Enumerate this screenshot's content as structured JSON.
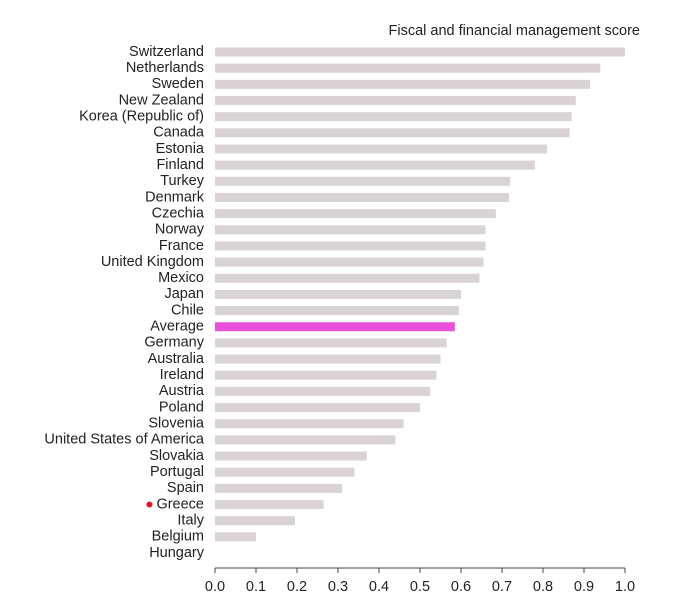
{
  "chart_data": {
    "type": "hbar",
    "title": "Fiscal and financial management score",
    "categories": [
      "Switzerland",
      "Netherlands",
      "Sweden",
      "New Zealand",
      "Korea (Republic of)",
      "Canada",
      "Estonia",
      "Finland",
      "Turkey",
      "Denmark",
      "Czechia",
      "Norway",
      "France",
      "United Kingdom",
      "Mexico",
      "Japan",
      "Chile",
      "Average",
      "Germany",
      "Australia",
      "Ireland",
      "Austria",
      "Poland",
      "Slovenia",
      "United States of America",
      "Slovakia",
      "Portugal",
      "Spain",
      "Greece",
      "Italy",
      "Belgium",
      "Hungary"
    ],
    "values": [
      1.0,
      0.94,
      0.915,
      0.88,
      0.87,
      0.865,
      0.81,
      0.78,
      0.72,
      0.717,
      0.685,
      0.66,
      0.66,
      0.655,
      0.645,
      0.6,
      0.595,
      0.585,
      0.565,
      0.55,
      0.54,
      0.525,
      0.5,
      0.46,
      0.44,
      0.37,
      0.34,
      0.31,
      0.265,
      0.195,
      0.1,
      0
    ],
    "color": "#d9d3d6",
    "highlight_bars": {
      "Average": "#e94fda"
    },
    "marked_categories": [
      "Greece"
    ],
    "marker_color": "#e0161f",
    "xlim": [
      0,
      1
    ],
    "xticks": [
      {
        "value": 0,
        "label": "0.0"
      },
      0.1,
      0.2,
      0.3,
      0.4,
      0.5,
      0.6,
      0.7,
      0.8,
      0.9,
      {
        "value": 1,
        "label": "1.0"
      }
    ]
  }
}
